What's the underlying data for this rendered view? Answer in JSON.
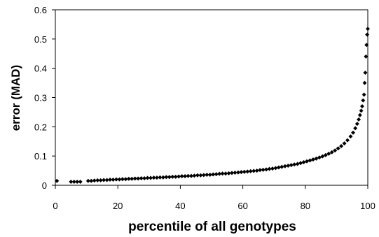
{
  "chart_data": {
    "type": "scatter",
    "xlabel": "percentile of all genotypes",
    "ylabel": "error (MAD)",
    "xlim": [
      0,
      100
    ],
    "ylim": [
      0,
      0.6
    ],
    "x_ticks": [
      0,
      20,
      40,
      60,
      80,
      100
    ],
    "y_ticks": [
      0,
      0.1,
      0.2,
      0.3,
      0.4,
      0.5,
      0.6
    ],
    "grid": false,
    "marker_color": "#000000",
    "series": [
      {
        "points": [
          [
            0.5,
            0.015
          ],
          [
            5,
            0.012
          ],
          [
            6,
            0.012
          ],
          [
            7,
            0.012
          ],
          [
            8,
            0.012
          ],
          [
            10.5,
            0.015
          ],
          [
            11.5,
            0.015
          ],
          [
            12.5,
            0.016
          ],
          [
            13.5,
            0.017
          ],
          [
            14.5,
            0.017
          ],
          [
            15.5,
            0.018
          ],
          [
            16.5,
            0.018
          ],
          [
            17.5,
            0.019
          ],
          [
            18.5,
            0.019
          ],
          [
            19.5,
            0.02
          ],
          [
            20.5,
            0.02
          ],
          [
            21.5,
            0.021
          ],
          [
            22.5,
            0.021
          ],
          [
            23.5,
            0.022
          ],
          [
            24.5,
            0.022
          ],
          [
            25.5,
            0.023
          ],
          [
            26.5,
            0.023
          ],
          [
            27.5,
            0.024
          ],
          [
            28.5,
            0.024
          ],
          [
            29.5,
            0.025
          ],
          [
            30.5,
            0.025
          ],
          [
            31.5,
            0.026
          ],
          [
            32.5,
            0.026
          ],
          [
            33.5,
            0.027
          ],
          [
            34.5,
            0.027
          ],
          [
            35.5,
            0.028
          ],
          [
            36.5,
            0.028
          ],
          [
            37.5,
            0.029
          ],
          [
            38.5,
            0.029
          ],
          [
            39.5,
            0.03
          ],
          [
            40.5,
            0.031
          ],
          [
            41.5,
            0.031
          ],
          [
            42.5,
            0.032
          ],
          [
            43.5,
            0.032
          ],
          [
            44.5,
            0.033
          ],
          [
            45.5,
            0.034
          ],
          [
            46.5,
            0.034
          ],
          [
            47.5,
            0.035
          ],
          [
            48.5,
            0.036
          ],
          [
            49.5,
            0.036
          ],
          [
            50.5,
            0.037
          ],
          [
            51.5,
            0.038
          ],
          [
            52.5,
            0.039
          ],
          [
            53.5,
            0.04
          ],
          [
            54.5,
            0.04
          ],
          [
            55.5,
            0.041
          ],
          [
            56.5,
            0.042
          ],
          [
            57.5,
            0.043
          ],
          [
            58.5,
            0.044
          ],
          [
            59.5,
            0.045
          ],
          [
            60.5,
            0.046
          ],
          [
            61.5,
            0.047
          ],
          [
            62.5,
            0.048
          ],
          [
            63.5,
            0.049
          ],
          [
            64.5,
            0.05
          ],
          [
            65.5,
            0.052
          ],
          [
            66.5,
            0.053
          ],
          [
            67.5,
            0.054
          ],
          [
            68.5,
            0.056
          ],
          [
            69.5,
            0.057
          ],
          [
            70.5,
            0.059
          ],
          [
            71.5,
            0.061
          ],
          [
            72.5,
            0.063
          ],
          [
            73.5,
            0.065
          ],
          [
            74.5,
            0.067
          ],
          [
            75.5,
            0.069
          ],
          [
            76.5,
            0.071
          ],
          [
            77.5,
            0.073
          ],
          [
            78.5,
            0.076
          ],
          [
            79.5,
            0.079
          ],
          [
            80.5,
            0.082
          ],
          [
            81.5,
            0.085
          ],
          [
            82.5,
            0.088
          ],
          [
            83.5,
            0.091
          ],
          [
            84.5,
            0.095
          ],
          [
            85.5,
            0.099
          ],
          [
            86.5,
            0.103
          ],
          [
            87.5,
            0.108
          ],
          [
            88.5,
            0.113
          ],
          [
            89.5,
            0.119
          ],
          [
            90.5,
            0.126
          ],
          [
            91.5,
            0.134
          ],
          [
            92.5,
            0.143
          ],
          [
            93.5,
            0.154
          ],
          [
            94.5,
            0.167
          ],
          [
            95.3,
            0.18
          ],
          [
            96.0,
            0.195
          ],
          [
            96.6,
            0.21
          ],
          [
            97.1,
            0.225
          ],
          [
            97.5,
            0.24
          ],
          [
            97.9,
            0.255
          ],
          [
            98.2,
            0.27
          ],
          [
            98.5,
            0.29
          ],
          [
            98.8,
            0.31
          ],
          [
            99.0,
            0.35
          ],
          [
            99.2,
            0.385
          ],
          [
            99.4,
            0.44
          ],
          [
            99.6,
            0.48
          ],
          [
            99.8,
            0.515
          ],
          [
            100.0,
            0.535
          ]
        ]
      }
    ]
  }
}
